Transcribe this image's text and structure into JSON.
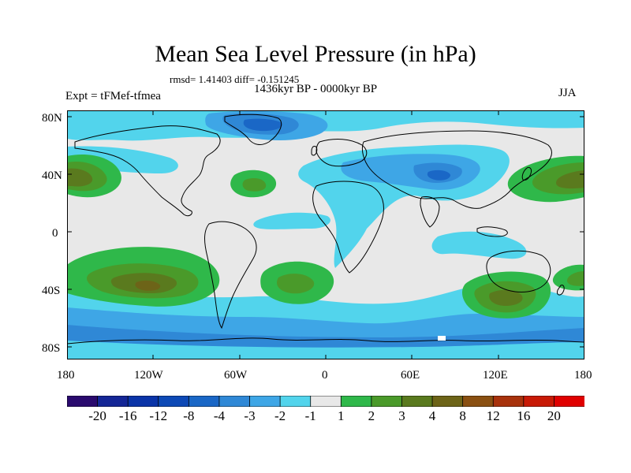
{
  "title": "Mean Sea Level Pressure (in hPa)",
  "stats": "rmsd= 1.41403 diff= -0.151245",
  "period": "1436kyr BP - 0000kyr BP",
  "experiment": "Expt = tFMef-tfmea",
  "season": "JJA",
  "lat_labels": [
    "80N",
    "40N",
    "0",
    "40S",
    "80S"
  ],
  "lon_labels": [
    "180",
    "120W",
    "60W",
    "0",
    "60E",
    "120E",
    "180"
  ],
  "colorbar": {
    "colors": [
      "#2a0a6e",
      "#142696",
      "#0a34a8",
      "#0d49b6",
      "#1a67c6",
      "#2f88d6",
      "#3ea6e6",
      "#52d4ec",
      "#e8e8e8",
      "#2fb84a",
      "#4a9a2a",
      "#5a7a1e",
      "#6d6418",
      "#8a5012",
      "#a8320c",
      "#c81a06",
      "#e00000"
    ],
    "labels": [
      "-20",
      "-16",
      "-12",
      "-8",
      "-4",
      "-3",
      "-2",
      "-1",
      "1",
      "2",
      "3",
      "4",
      "8",
      "12",
      "16",
      "20"
    ]
  }
}
